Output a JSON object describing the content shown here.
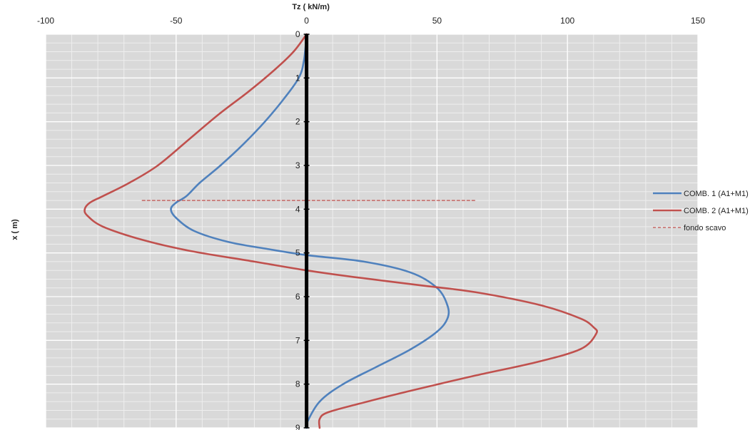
{
  "chart_data": {
    "type": "line",
    "title": "",
    "xlabel": "Tz ( kN/m)",
    "ylabel": "x ( m)",
    "xlim": [
      -100,
      150
    ],
    "ylim": [
      0,
      9
    ],
    "y_inverted": true,
    "x_axis_position": "top",
    "x_ticks": [
      -100,
      -50,
      0,
      50,
      100,
      150
    ],
    "y_ticks": [
      0,
      1,
      2,
      3,
      4,
      5,
      6,
      7,
      8,
      9
    ],
    "grid": true,
    "legend_position": "right",
    "colors": {
      "plot_background": "#d9d9d9",
      "major_grid": "#ffffff",
      "minor_grid": "#eeeeee",
      "zero_axis": "#000000"
    },
    "series": [
      {
        "name": "COMB. 1 (A1+M1)",
        "color": "#4f81bd",
        "style": "solid",
        "points": [
          [
            0,
            0
          ],
          [
            -1,
            0.6
          ],
          [
            -3,
            1.0
          ],
          [
            -9,
            1.5
          ],
          [
            -16,
            2.0
          ],
          [
            -24,
            2.5
          ],
          [
            -33,
            3.0
          ],
          [
            -41,
            3.4
          ],
          [
            -46,
            3.7
          ],
          [
            -50,
            3.85
          ],
          [
            -52,
            4.0
          ],
          [
            -50,
            4.2
          ],
          [
            -43,
            4.5
          ],
          [
            -30,
            4.75
          ],
          [
            -16,
            4.9
          ],
          [
            0,
            5.05
          ],
          [
            22,
            5.2
          ],
          [
            40,
            5.45
          ],
          [
            50,
            5.8
          ],
          [
            54,
            6.2
          ],
          [
            54,
            6.5
          ],
          [
            50,
            6.8
          ],
          [
            40,
            7.2
          ],
          [
            27,
            7.6
          ],
          [
            14,
            8.0
          ],
          [
            5,
            8.4
          ],
          [
            0,
            8.9
          ],
          [
            0,
            9.0
          ]
        ]
      },
      {
        "name": "COMB. 2 (A1+M1)",
        "color": "#c0504d",
        "style": "solid",
        "points": [
          [
            0,
            0
          ],
          [
            -5,
            0.4
          ],
          [
            -12,
            0.8
          ],
          [
            -22,
            1.3
          ],
          [
            -33,
            1.8
          ],
          [
            -45,
            2.4
          ],
          [
            -57,
            3.0
          ],
          [
            -68,
            3.4
          ],
          [
            -78,
            3.7
          ],
          [
            -83,
            3.85
          ],
          [
            -85,
            4.0
          ],
          [
            -84,
            4.15
          ],
          [
            -78,
            4.4
          ],
          [
            -63,
            4.7
          ],
          [
            -45,
            4.95
          ],
          [
            -20,
            5.2
          ],
          [
            0,
            5.4
          ],
          [
            18,
            5.55
          ],
          [
            45,
            5.75
          ],
          [
            65,
            5.9
          ],
          [
            90,
            6.2
          ],
          [
            105,
            6.5
          ],
          [
            110,
            6.7
          ],
          [
            111,
            6.85
          ],
          [
            105,
            7.2
          ],
          [
            88,
            7.5
          ],
          [
            65,
            7.8
          ],
          [
            40,
            8.15
          ],
          [
            20,
            8.45
          ],
          [
            8,
            8.65
          ],
          [
            5,
            8.8
          ],
          [
            5,
            9.0
          ]
        ]
      },
      {
        "name": "fondo scavo",
        "color": "#c0504d",
        "style": "dashed",
        "points": [
          [
            -63,
            3.8
          ],
          [
            65,
            3.8
          ]
        ]
      }
    ]
  }
}
